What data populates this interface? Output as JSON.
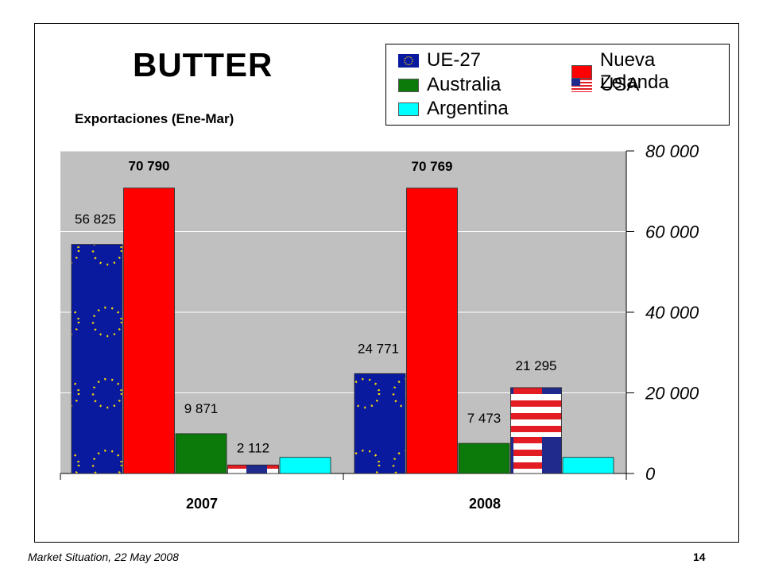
{
  "colors": {
    "eu": "#0a1a9e",
    "nz": "#ff0000",
    "au": "#0b7a0b",
    "usa_red": "#e31b23",
    "usa_blue": "#1f2a8c",
    "ar": "#00ffff",
    "plot_bg": "#c0c0c0",
    "star": "#ffdd00"
  },
  "footer": {
    "left": "Market Situation, 22 May 2008",
    "right": "14"
  },
  "legend": [
    {
      "label": "UE-27",
      "icon": "eu-flag-icon"
    },
    {
      "label": "Nueva Zelanda",
      "icon": "red-swatch"
    },
    {
      "label": "Australia",
      "icon": "green-swatch"
    },
    {
      "label": "USA",
      "icon": "us-flag-icon"
    },
    {
      "label": "Argentina",
      "icon": "cyan-swatch"
    }
  ],
  "chart_data": {
    "type": "bar",
    "title": "BUTTER",
    "subtitle": "Exportaciones  (Ene-Mar)",
    "categories": [
      "2007",
      "2008"
    ],
    "series": [
      {
        "name": "UE-27",
        "values": [
          56825,
          24771
        ],
        "labels": [
          "56 825",
          "24 771"
        ]
      },
      {
        "name": "Nueva Zelanda",
        "values": [
          70790,
          70769
        ],
        "labels": [
          "70 790",
          "70 769"
        ]
      },
      {
        "name": "Australia",
        "values": [
          9871,
          7473
        ],
        "labels": [
          "9 871",
          "7 473"
        ]
      },
      {
        "name": "USA",
        "values": [
          2112,
          21295
        ],
        "labels": [
          "2 112",
          "21 295"
        ]
      },
      {
        "name": "Argentina",
        "values": [
          4000,
          4000
        ],
        "labels": [
          "",
          ""
        ]
      }
    ],
    "ylim": [
      0,
      80000
    ],
    "yticks": [
      0,
      20000,
      40000,
      60000,
      80000
    ],
    "ytick_labels": [
      "0",
      "20 000",
      "40 000",
      "60 000",
      "80 000"
    ],
    "y_axis_side": "right",
    "grid": true,
    "legend_position": "top-right"
  }
}
